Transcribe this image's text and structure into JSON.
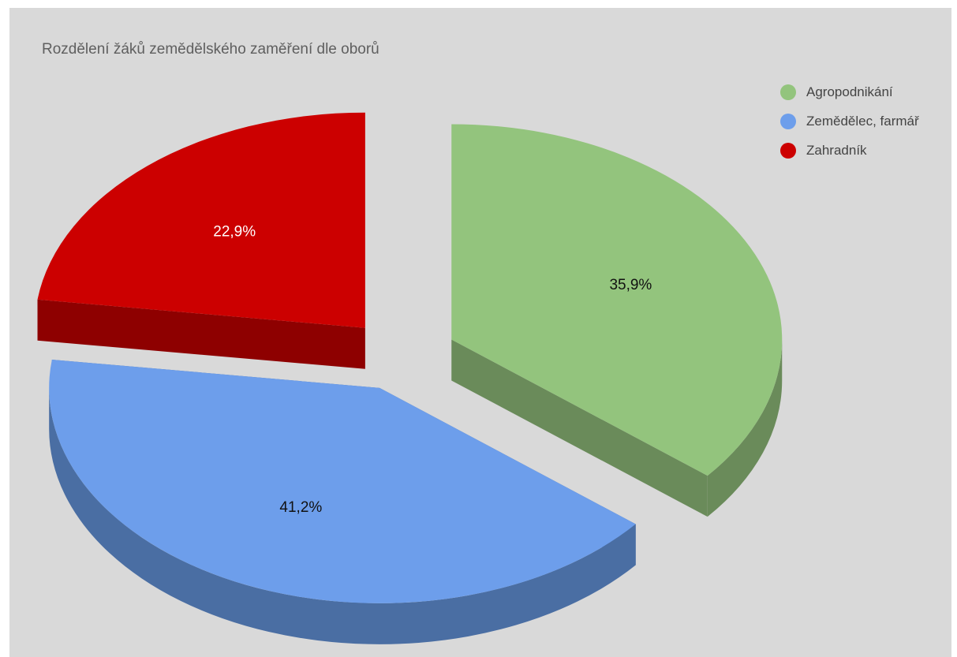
{
  "chart_data": {
    "type": "pie",
    "title": "Rozdělení žáků zemědělského zaměření dle oborů",
    "legend_position": "top-right",
    "three_d": true,
    "exploded": true,
    "slices": [
      {
        "name": "Agropodnikání",
        "value": 35.9,
        "label": "35,9%",
        "color": "#93c47d",
        "side_color": "#6a8b5a",
        "label_color": "#111111"
      },
      {
        "name": "Zemědělec, farmář",
        "value": 41.2,
        "label": "41,2%",
        "color": "#6d9eeb",
        "side_color": "#4a6ea3",
        "label_color": "#111111"
      },
      {
        "name": "Zahradník",
        "value": 22.9,
        "label": "22,9%",
        "color": "#cc0000",
        "side_color": "#8e0000",
        "label_color": "#ffffff"
      }
    ]
  }
}
